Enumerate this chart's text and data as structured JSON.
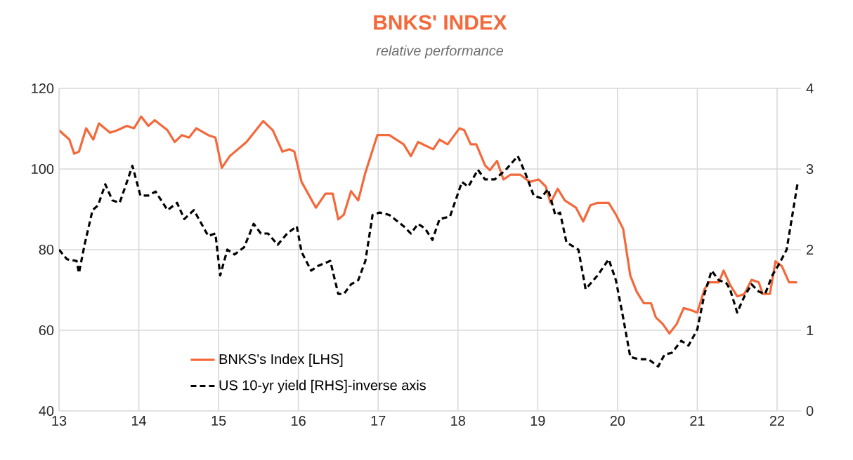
{
  "chart_data": {
    "type": "line",
    "title": "BNKS' INDEX",
    "subtitle": "relative performance",
    "xlim": [
      13,
      22.3
    ],
    "xticks": [
      13,
      14,
      15,
      16,
      17,
      18,
      19,
      20,
      21,
      22
    ],
    "ylim": [
      40,
      120
    ],
    "yticks": [
      40,
      60,
      80,
      100,
      120
    ],
    "y2lim": [
      0,
      4
    ],
    "y2ticks": [
      0,
      1,
      2,
      3,
      4
    ],
    "grid": true,
    "legend": "bottom left",
    "marker": "none",
    "series": [
      {
        "name": "BNKS's Index [LHS]",
        "color": "#f4683a",
        "line_style": "solid",
        "x": [
          13.0,
          13.13,
          13.19,
          13.25,
          13.34,
          13.43,
          13.5,
          13.64,
          13.73,
          13.85,
          13.94,
          14.03,
          14.12,
          14.2,
          14.36,
          14.45,
          14.54,
          14.63,
          14.72,
          14.87,
          14.96,
          15.04,
          15.14,
          15.35,
          15.56,
          15.68,
          15.8,
          15.89,
          15.95,
          16.04,
          16.22,
          16.34,
          16.43,
          16.5,
          16.57,
          16.66,
          16.75,
          16.84,
          16.99,
          17.14,
          17.32,
          17.41,
          17.5,
          17.69,
          17.77,
          17.87,
          18.02,
          18.08,
          18.16,
          18.23,
          18.34,
          18.4,
          18.49,
          18.57,
          18.66,
          18.78,
          18.9,
          19.01,
          19.1,
          19.16,
          19.25,
          19.34,
          19.48,
          19.57,
          19.66,
          19.75,
          19.89,
          19.98,
          20.07,
          20.16,
          20.24,
          20.33,
          20.42,
          20.48,
          20.57,
          20.65,
          20.74,
          20.83,
          20.92,
          21.0,
          21.09,
          21.15,
          21.27,
          21.33,
          21.41,
          21.5,
          21.59,
          21.68,
          21.77,
          21.82,
          21.91,
          21.98,
          22.06,
          22.15,
          22.25
        ],
        "values": [
          109.6,
          107.3,
          103.8,
          104.3,
          110.1,
          107.3,
          111.3,
          109.0,
          109.6,
          110.7,
          110.1,
          113.0,
          110.7,
          112.1,
          109.6,
          106.7,
          108.4,
          107.8,
          110.1,
          108.4,
          107.8,
          100.3,
          103.2,
          106.7,
          111.9,
          109.6,
          104.3,
          104.9,
          104.3,
          96.8,
          90.4,
          93.9,
          93.9,
          87.5,
          88.7,
          94.5,
          92.2,
          99.1,
          108.4,
          108.4,
          106.1,
          103.2,
          106.7,
          104.9,
          107.3,
          106.1,
          110.1,
          109.6,
          106.1,
          106.1,
          100.9,
          99.7,
          102.0,
          97.4,
          98.6,
          98.6,
          96.8,
          97.4,
          95.7,
          91.6,
          95.1,
          92.2,
          90.4,
          87.0,
          91.0,
          91.6,
          91.6,
          88.7,
          85.2,
          73.6,
          69.6,
          66.7,
          66.7,
          63.2,
          61.5,
          59.2,
          61.5,
          65.5,
          65.0,
          64.4,
          70.2,
          71.9,
          71.9,
          74.8,
          71.3,
          68.4,
          69.0,
          72.5,
          71.9,
          69.0,
          69.0,
          77.1,
          75.9,
          71.9,
          71.9
        ]
      },
      {
        "name": "US 10-yr yield [RHS]-inverse axis",
        "color": "#000000",
        "line_style": "dashed",
        "axis": "y2",
        "x": [
          13.0,
          13.1,
          13.22,
          13.25,
          13.32,
          13.42,
          13.49,
          13.58,
          13.67,
          13.76,
          13.82,
          13.92,
          14.02,
          14.12,
          14.21,
          14.36,
          14.48,
          14.57,
          14.69,
          14.87,
          14.96,
          15.02,
          15.11,
          15.2,
          15.32,
          15.44,
          15.53,
          15.62,
          15.74,
          15.86,
          15.98,
          16.04,
          16.16,
          16.25,
          16.4,
          16.5,
          16.57,
          16.66,
          16.75,
          16.84,
          16.93,
          17.02,
          17.14,
          17.32,
          17.41,
          17.5,
          17.59,
          17.68,
          17.77,
          17.9,
          18.05,
          18.13,
          18.25,
          18.34,
          18.46,
          18.6,
          18.75,
          18.84,
          18.95,
          19.04,
          19.13,
          19.22,
          19.28,
          19.36,
          19.51,
          19.6,
          19.75,
          19.89,
          19.98,
          20.07,
          20.16,
          20.27,
          20.39,
          20.51,
          20.59,
          20.68,
          20.8,
          20.89,
          21.0,
          21.09,
          21.18,
          21.27,
          21.36,
          21.41,
          21.5,
          21.59,
          21.68,
          21.77,
          21.85,
          21.94,
          22.03,
          22.12,
          22.26
        ],
        "values": [
          2.0,
          1.88,
          1.86,
          1.71,
          2.06,
          2.49,
          2.55,
          2.81,
          2.61,
          2.58,
          2.75,
          3.04,
          2.67,
          2.67,
          2.72,
          2.49,
          2.58,
          2.38,
          2.49,
          2.17,
          2.2,
          1.68,
          2.0,
          1.94,
          2.03,
          2.32,
          2.2,
          2.2,
          2.06,
          2.2,
          2.29,
          1.97,
          1.74,
          1.8,
          1.86,
          1.45,
          1.45,
          1.57,
          1.62,
          1.86,
          2.43,
          2.46,
          2.43,
          2.29,
          2.2,
          2.32,
          2.26,
          2.12,
          2.38,
          2.41,
          2.84,
          2.78,
          2.99,
          2.87,
          2.87,
          2.99,
          3.16,
          2.96,
          2.67,
          2.64,
          2.75,
          2.43,
          2.46,
          2.09,
          2.0,
          1.51,
          1.68,
          1.88,
          1.62,
          1.16,
          0.67,
          0.64,
          0.64,
          0.55,
          0.7,
          0.72,
          0.87,
          0.81,
          1.01,
          1.45,
          1.74,
          1.62,
          1.59,
          1.51,
          1.22,
          1.42,
          1.57,
          1.48,
          1.45,
          1.68,
          1.83,
          2.0,
          2.84
        ]
      }
    ]
  }
}
